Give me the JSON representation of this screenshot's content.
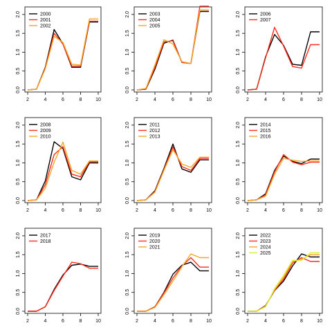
{
  "chart_data": [
    {
      "type": "line",
      "x": [
        2,
        3,
        4,
        5,
        6,
        7,
        8,
        9,
        10
      ],
      "ylim": [
        0,
        2.2
      ],
      "xticks": [
        2,
        4,
        6,
        8,
        10
      ],
      "yticks": [
        0,
        0.5,
        1,
        1.5,
        2
      ],
      "grid": false,
      "legend": "top-left",
      "series": [
        {
          "name": "2000",
          "color": "#000000",
          "values": [
            0,
            0.02,
            0.6,
            1.6,
            1.22,
            0.6,
            0.6,
            1.8,
            1.8
          ]
        },
        {
          "name": "2001",
          "color": "#ff2a1a",
          "values": [
            0,
            0.02,
            0.58,
            1.5,
            1.22,
            0.63,
            0.63,
            1.82,
            1.82
          ]
        },
        {
          "name": "2002",
          "color": "#f5a623",
          "values": [
            0,
            0.02,
            0.56,
            1.42,
            1.26,
            0.68,
            0.66,
            1.88,
            1.88
          ]
        }
      ]
    },
    {
      "type": "line",
      "x": [
        2,
        3,
        4,
        5,
        6,
        7,
        8,
        9,
        10
      ],
      "ylim": [
        0,
        2.2
      ],
      "xticks": [
        2,
        4,
        6,
        8,
        10
      ],
      "yticks": [
        0,
        0.5,
        1,
        1.5,
        2
      ],
      "grid": false,
      "legend": "top-left",
      "series": [
        {
          "name": "2003",
          "color": "#000000",
          "values": [
            0,
            0.02,
            0.55,
            1.24,
            1.32,
            0.73,
            0.7,
            2.08,
            2.08
          ]
        },
        {
          "name": "2004",
          "color": "#ff2a1a",
          "values": [
            0,
            0.03,
            0.6,
            1.28,
            1.3,
            0.73,
            0.7,
            2.22,
            2.22
          ]
        },
        {
          "name": "2005",
          "color": "#f5a623",
          "values": [
            0,
            0.04,
            0.66,
            1.33,
            1.22,
            0.75,
            0.7,
            2.12,
            2.12
          ]
        }
      ]
    },
    {
      "type": "line",
      "x": [
        2,
        3,
        4,
        5,
        6,
        7,
        8,
        9,
        10
      ],
      "ylim": [
        0,
        2.2
      ],
      "xticks": [
        2,
        4,
        6,
        8,
        10
      ],
      "yticks": [
        0,
        0.5,
        1,
        1.5,
        2
      ],
      "grid": false,
      "legend": "top-left",
      "series": [
        {
          "name": "2006",
          "color": "#000000",
          "values": [
            0,
            0.02,
            0.88,
            1.47,
            1.18,
            0.68,
            0.65,
            1.54,
            1.54
          ]
        },
        {
          "name": "2007",
          "color": "#ff2a1a",
          "values": [
            0,
            0.02,
            0.85,
            1.66,
            1.16,
            0.62,
            0.58,
            1.2,
            1.2
          ]
        }
      ]
    },
    {
      "type": "line",
      "x": [
        2,
        3,
        4,
        5,
        6,
        7,
        8,
        9,
        10
      ],
      "ylim": [
        0,
        2.2
      ],
      "xticks": [
        2,
        4,
        6,
        8,
        10
      ],
      "yticks": [
        0,
        0.5,
        1,
        1.5,
        2
      ],
      "grid": false,
      "legend": "top-left",
      "series": [
        {
          "name": "2008",
          "color": "#000000",
          "values": [
            0,
            0.02,
            0.52,
            1.56,
            1.38,
            0.63,
            0.55,
            1.0,
            1.0
          ]
        },
        {
          "name": "2009",
          "color": "#ff2a1a",
          "values": [
            0,
            0.02,
            0.42,
            1.22,
            1.43,
            0.7,
            0.63,
            1.03,
            1.03
          ]
        },
        {
          "name": "2010",
          "color": "#f5a623",
          "values": [
            0,
            0.02,
            0.33,
            1.02,
            1.55,
            0.8,
            0.7,
            1.05,
            1.05
          ]
        }
      ]
    },
    {
      "type": "line",
      "x": [
        2,
        3,
        4,
        5,
        6,
        7,
        8,
        9,
        10
      ],
      "ylim": [
        0,
        2.2
      ],
      "xticks": [
        2,
        4,
        6,
        8,
        10
      ],
      "yticks": [
        0,
        0.5,
        1,
        1.5,
        2
      ],
      "grid": false,
      "legend": "top-left",
      "series": [
        {
          "name": "2011",
          "color": "#000000",
          "values": [
            0,
            0.02,
            0.26,
            0.85,
            1.5,
            0.84,
            0.75,
            1.08,
            1.08
          ]
        },
        {
          "name": "2012",
          "color": "#ff2a1a",
          "values": [
            0,
            0.02,
            0.24,
            0.82,
            1.42,
            0.9,
            0.8,
            1.12,
            1.12
          ]
        },
        {
          "name": "2013",
          "color": "#f5a623",
          "values": [
            0,
            0.02,
            0.22,
            0.8,
            1.35,
            0.97,
            0.88,
            1.15,
            1.15
          ]
        }
      ]
    },
    {
      "type": "line",
      "x": [
        2,
        3,
        4,
        5,
        6,
        7,
        8,
        9,
        10
      ],
      "ylim": [
        0,
        2.2
      ],
      "xticks": [
        2,
        4,
        6,
        8,
        10
      ],
      "yticks": [
        0,
        0.5,
        1,
        1.5,
        2
      ],
      "grid": false,
      "legend": "top-left",
      "series": [
        {
          "name": "2014",
          "color": "#000000",
          "values": [
            0,
            0.02,
            0.18,
            0.8,
            1.18,
            1.04,
            0.98,
            1.1,
            1.1
          ]
        },
        {
          "name": "2015",
          "color": "#ff2a1a",
          "values": [
            0,
            0.02,
            0.15,
            0.76,
            1.22,
            1.02,
            0.95,
            1.02,
            1.02
          ]
        },
        {
          "name": "2016",
          "color": "#f5a623",
          "values": [
            0,
            0.02,
            0.12,
            0.7,
            1.12,
            1.07,
            1.04,
            1.05,
            1.05
          ]
        }
      ]
    },
    {
      "type": "line",
      "x": [
        2,
        3,
        4,
        5,
        6,
        7,
        8,
        9,
        10
      ],
      "ylim": [
        0,
        2.2
      ],
      "xticks": [
        2,
        4,
        6,
        8,
        10
      ],
      "yticks": [
        0,
        0.5,
        1,
        1.5,
        2
      ],
      "grid": false,
      "legend": "top-left",
      "series": [
        {
          "name": "2017",
          "color": "#000000",
          "values": [
            0,
            0,
            0.12,
            0.58,
            0.96,
            1.22,
            1.25,
            1.19,
            1.19
          ]
        },
        {
          "name": "2018",
          "color": "#ff2a1a",
          "values": [
            0,
            0,
            0.12,
            0.55,
            0.93,
            1.3,
            1.26,
            1.14,
            1.14
          ]
        }
      ]
    },
    {
      "type": "line",
      "x": [
        2,
        3,
        4,
        5,
        6,
        7,
        8,
        9,
        10
      ],
      "ylim": [
        0,
        2.2
      ],
      "xticks": [
        2,
        4,
        6,
        8,
        10
      ],
      "yticks": [
        0,
        0.5,
        1,
        1.5,
        2
      ],
      "grid": false,
      "legend": "top-left",
      "series": [
        {
          "name": "2019",
          "color": "#000000",
          "values": [
            0,
            0,
            0.12,
            0.5,
            0.98,
            1.22,
            1.3,
            1.07,
            1.07
          ]
        },
        {
          "name": "2020",
          "color": "#ff2a1a",
          "values": [
            0,
            0,
            0.12,
            0.48,
            0.88,
            1.2,
            1.42,
            1.17,
            1.17
          ]
        },
        {
          "name": "2021",
          "color": "#f5a623",
          "values": [
            0,
            0,
            0.1,
            0.44,
            0.8,
            1.18,
            1.52,
            1.42,
            1.42
          ]
        }
      ]
    },
    {
      "type": "line",
      "x": [
        2,
        3,
        4,
        5,
        6,
        7,
        8,
        9,
        10
      ],
      "ylim": [
        0,
        2.2
      ],
      "xticks": [
        2,
        4,
        6,
        8,
        10
      ],
      "yticks": [
        0,
        0.5,
        1,
        1.5,
        2
      ],
      "grid": false,
      "legend": "top-left",
      "series": [
        {
          "name": "2022",
          "color": "#000000",
          "values": [
            0,
            0,
            0.15,
            0.55,
            0.8,
            1.2,
            1.52,
            1.44,
            1.44
          ]
        },
        {
          "name": "2023",
          "color": "#ff2a1a",
          "values": [
            0,
            0,
            0.14,
            0.56,
            0.85,
            1.28,
            1.42,
            1.32,
            1.32
          ]
        },
        {
          "name": "2024",
          "color": "#f5a623",
          "values": [
            0,
            0,
            0.13,
            0.58,
            0.9,
            1.32,
            1.38,
            1.5,
            1.5
          ]
        },
        {
          "name": "2025",
          "color": "#d8f030",
          "values": [
            0,
            0,
            0.12,
            0.6,
            0.95,
            1.35,
            1.35,
            1.55,
            1.55
          ]
        }
      ]
    }
  ]
}
